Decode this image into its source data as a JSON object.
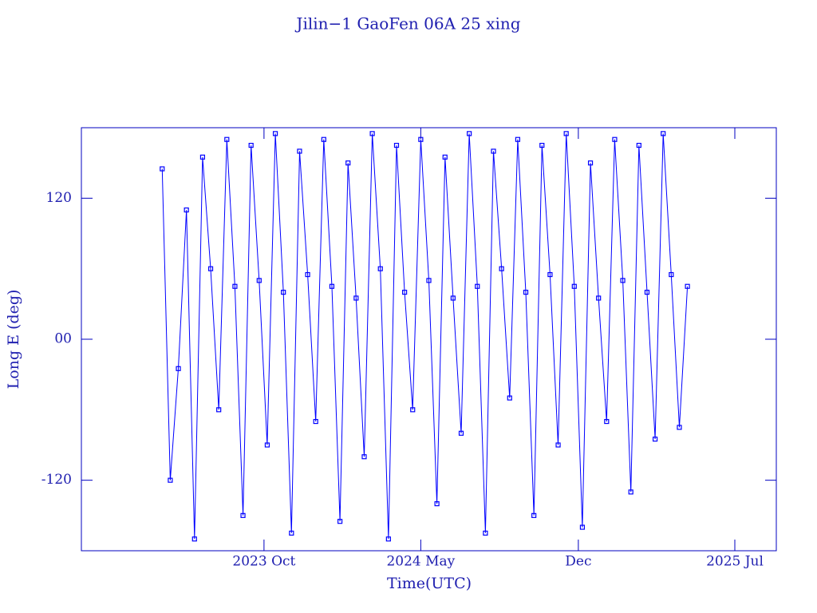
{
  "chart_data": {
    "type": "line",
    "title": "Jilin−1 GaoFen 06A 25 xing",
    "x_label": "Time(UTC)",
    "y_label": "Long E (deg)",
    "xlim": [
      2023.07,
      2025.65
    ],
    "xticks": [
      {
        "value": 2023.748,
        "label": "2023 Oct"
      },
      {
        "value": 2024.33,
        "label": "2024 May"
      },
      {
        "value": 2024.915,
        "label": "Dec"
      },
      {
        "value": 2025.496,
        "label": "2025 Jul"
      }
    ],
    "ylim": [
      -180,
      180
    ],
    "yticks": [
      {
        "value": 120,
        "label": "120"
      },
      {
        "value": 0,
        "label": "00"
      },
      {
        "value": -120,
        "label": "-120"
      }
    ],
    "series": [
      {
        "color": "#0000ff",
        "x": [
          2023.37,
          2023.4,
          2023.43,
          2023.46,
          2023.49,
          2023.52,
          2023.55,
          2023.58,
          2023.61,
          2023.64,
          2023.67,
          2023.7,
          2023.73,
          2023.76,
          2023.79,
          2023.82,
          2023.85,
          2023.88,
          2023.91,
          2023.94,
          2023.97,
          2024.0,
          2024.03,
          2024.06,
          2024.09,
          2024.12,
          2024.15,
          2024.18,
          2024.21,
          2024.24,
          2024.27,
          2024.3,
          2024.33,
          2024.36,
          2024.39,
          2024.42,
          2024.45,
          2024.48,
          2024.51,
          2024.54,
          2024.57,
          2024.6,
          2024.63,
          2024.66,
          2024.69,
          2024.72,
          2024.75,
          2024.78,
          2024.81,
          2024.84,
          2024.87,
          2024.9,
          2024.93,
          2024.96,
          2024.99,
          2025.02,
          2025.05,
          2025.08,
          2025.11,
          2025.14,
          2025.17,
          2025.2,
          2025.23,
          2025.26,
          2025.29,
          2025.32
        ],
        "values": [
          145,
          -120,
          -25,
          110,
          -170,
          155,
          60,
          -60,
          170,
          45,
          -150,
          165,
          50,
          -90,
          175,
          40,
          -165,
          160,
          55,
          -70,
          170,
          45,
          -155,
          150,
          35,
          -100,
          175,
          60,
          -170,
          165,
          40,
          -60,
          170,
          50,
          -140,
          155,
          35,
          -80,
          175,
          45,
          -165,
          160,
          60,
          -50,
          170,
          40,
          -150,
          165,
          55,
          -90,
          175,
          45,
          -160,
          150,
          35,
          -70,
          170,
          50,
          -130,
          165,
          40,
          -85,
          175,
          55,
          -75,
          45
        ]
      }
    ]
  }
}
